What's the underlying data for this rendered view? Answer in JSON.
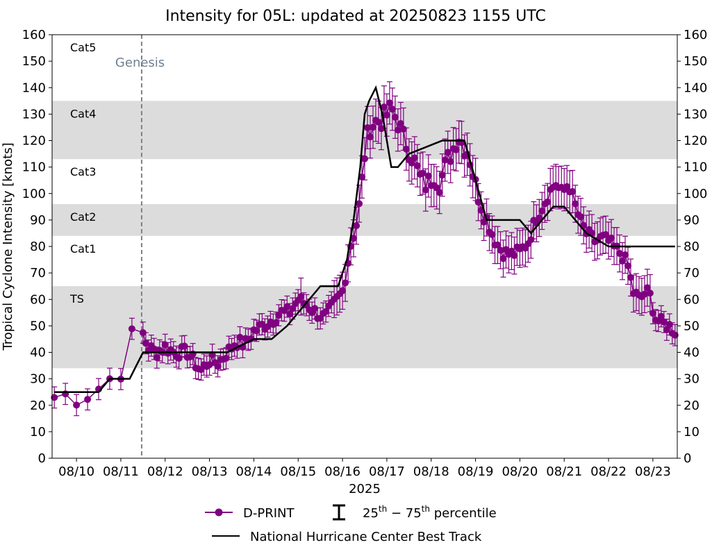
{
  "chart_data": {
    "type": "line",
    "title": "Intensity for 05L: updated at 20250823 1155 UTC",
    "ylabel": "Tropical Cyclone Intensity [knots]",
    "xlabel": "2025",
    "ylim": [
      0,
      160
    ],
    "yticks": [
      0,
      10,
      20,
      30,
      40,
      50,
      60,
      70,
      80,
      90,
      100,
      110,
      120,
      130,
      140,
      150,
      160
    ],
    "xlim": [
      9.45,
      23.55
    ],
    "xticks": [
      {
        "day": 10,
        "label": "08/10"
      },
      {
        "day": 11,
        "label": "08/11"
      },
      {
        "day": 12,
        "label": "08/12"
      },
      {
        "day": 13,
        "label": "08/13"
      },
      {
        "day": 14,
        "label": "08/14"
      },
      {
        "day": 15,
        "label": "08/15"
      },
      {
        "day": 16,
        "label": "08/16"
      },
      {
        "day": 17,
        "label": "08/17"
      },
      {
        "day": 18,
        "label": "08/18"
      },
      {
        "day": 19,
        "label": "08/19"
      },
      {
        "day": 20,
        "label": "08/20"
      },
      {
        "day": 21,
        "label": "08/21"
      },
      {
        "day": 22,
        "label": "08/22"
      },
      {
        "day": 23,
        "label": "08/23"
      }
    ],
    "category_bands": [
      {
        "label": "TS",
        "lo": 34,
        "hi": 65,
        "shaded": true
      },
      {
        "label": "Cat1",
        "lo": 65,
        "hi": 84,
        "shaded": false
      },
      {
        "label": "Cat2",
        "lo": 84,
        "hi": 96,
        "shaded": true
      },
      {
        "label": "Cat3",
        "lo": 96,
        "hi": 113,
        "shaded": false
      },
      {
        "label": "Cat4",
        "lo": 113,
        "hi": 135,
        "shaded": true
      },
      {
        "label": "Cat5",
        "lo": 135,
        "hi": 160,
        "shaded": false
      }
    ],
    "genesis": {
      "day": 11.47,
      "label": "Genesis"
    },
    "best_track": {
      "name": "National Hurricane Center Best Track",
      "x": [
        9.5,
        10.25,
        10.5,
        10.75,
        11.2,
        11.5,
        12.0,
        13.0,
        13.4,
        14.0,
        14.4,
        14.75,
        15.0,
        15.5,
        15.9,
        16.1,
        16.25,
        16.4,
        16.5,
        16.6,
        16.75,
        16.9,
        17.1,
        17.25,
        17.5,
        18.25,
        18.5,
        18.75,
        19.0,
        19.25,
        19.5,
        19.75,
        20.0,
        20.25,
        20.75,
        21.0,
        21.5,
        22.0,
        22.5,
        23.5
      ],
      "y": [
        25,
        25,
        25,
        30,
        30,
        40,
        40,
        40,
        40,
        45,
        45,
        50,
        55,
        65,
        65,
        75,
        90,
        110,
        130,
        135,
        140,
        130,
        110,
        110,
        115,
        120,
        120,
        120,
        105,
        90,
        90,
        90,
        90,
        85,
        95,
        95,
        85,
        80,
        80,
        80
      ]
    },
    "dprint": {
      "name": "D-PRINT",
      "anchors": [
        [
          9.5,
          23
        ],
        [
          9.75,
          24
        ],
        [
          9.9,
          22
        ],
        [
          10.1,
          22
        ],
        [
          10.3,
          24
        ],
        [
          10.55,
          27
        ],
        [
          10.75,
          30
        ],
        [
          10.9,
          25
        ],
        [
          11.0,
          32
        ],
        [
          11.1,
          41
        ],
        [
          11.25,
          47
        ],
        [
          11.4,
          45
        ],
        [
          11.5,
          47
        ],
        [
          11.6,
          42
        ],
        [
          11.8,
          40
        ],
        [
          12.0,
          42
        ],
        [
          12.2,
          40
        ],
        [
          12.5,
          40
        ],
        [
          12.8,
          33
        ],
        [
          13.0,
          37
        ],
        [
          13.2,
          36
        ],
        [
          13.4,
          40
        ],
        [
          13.6,
          44
        ],
        [
          13.8,
          43
        ],
        [
          14.0,
          48
        ],
        [
          14.2,
          50
        ],
        [
          14.4,
          52
        ],
        [
          14.6,
          55
        ],
        [
          14.8,
          55
        ],
        [
          15.0,
          60
        ],
        [
          15.2,
          58
        ],
        [
          15.4,
          55
        ],
        [
          15.6,
          53
        ],
        [
          15.8,
          58
        ],
        [
          16.0,
          63
        ],
        [
          16.1,
          72
        ],
        [
          16.2,
          82
        ],
        [
          16.3,
          87
        ],
        [
          16.4,
          98
        ],
        [
          16.5,
          115
        ],
        [
          16.6,
          125
        ],
        [
          16.75,
          127
        ],
        [
          16.9,
          128
        ],
        [
          17.1,
          132
        ],
        [
          17.25,
          127
        ],
        [
          17.4,
          120
        ],
        [
          17.6,
          113
        ],
        [
          17.75,
          106
        ],
        [
          17.9,
          103
        ],
        [
          18.05,
          107
        ],
        [
          18.2,
          104
        ],
        [
          18.35,
          112
        ],
        [
          18.5,
          117
        ],
        [
          18.6,
          122
        ],
        [
          18.7,
          119
        ],
        [
          18.85,
          115
        ],
        [
          19.0,
          103
        ],
        [
          19.15,
          95
        ],
        [
          19.3,
          88
        ],
        [
          19.45,
          82
        ],
        [
          19.6,
          78
        ],
        [
          19.8,
          77
        ],
        [
          20.0,
          78
        ],
        [
          20.2,
          82
        ],
        [
          20.35,
          90
        ],
        [
          20.5,
          95
        ],
        [
          20.65,
          100
        ],
        [
          20.8,
          104
        ],
        [
          20.95,
          100
        ],
        [
          21.1,
          104
        ],
        [
          21.2,
          98
        ],
        [
          21.35,
          90
        ],
        [
          21.5,
          85
        ],
        [
          21.7,
          82
        ],
        [
          21.85,
          83
        ],
        [
          22.0,
          82
        ],
        [
          22.15,
          79
        ],
        [
          22.3,
          77
        ],
        [
          22.45,
          72
        ],
        [
          22.55,
          63
        ],
        [
          22.7,
          60
        ],
        [
          22.85,
          63
        ],
        [
          22.95,
          61
        ],
        [
          23.05,
          53
        ],
        [
          23.2,
          51
        ],
        [
          23.35,
          50
        ],
        [
          23.5,
          48
        ]
      ]
    },
    "legend": {
      "dprint_label": "D-PRINT",
      "pct_label_prefix": "25",
      "pct_label_mid": " − 75",
      "pct_label_suffix": " percentile",
      "th": "th",
      "best_track_label": "National Hurricane Center Best Track"
    },
    "colors": {
      "dprint": "#800080",
      "best_track": "#000000",
      "band": "#dcdcdc",
      "genesis": "#708090"
    }
  }
}
